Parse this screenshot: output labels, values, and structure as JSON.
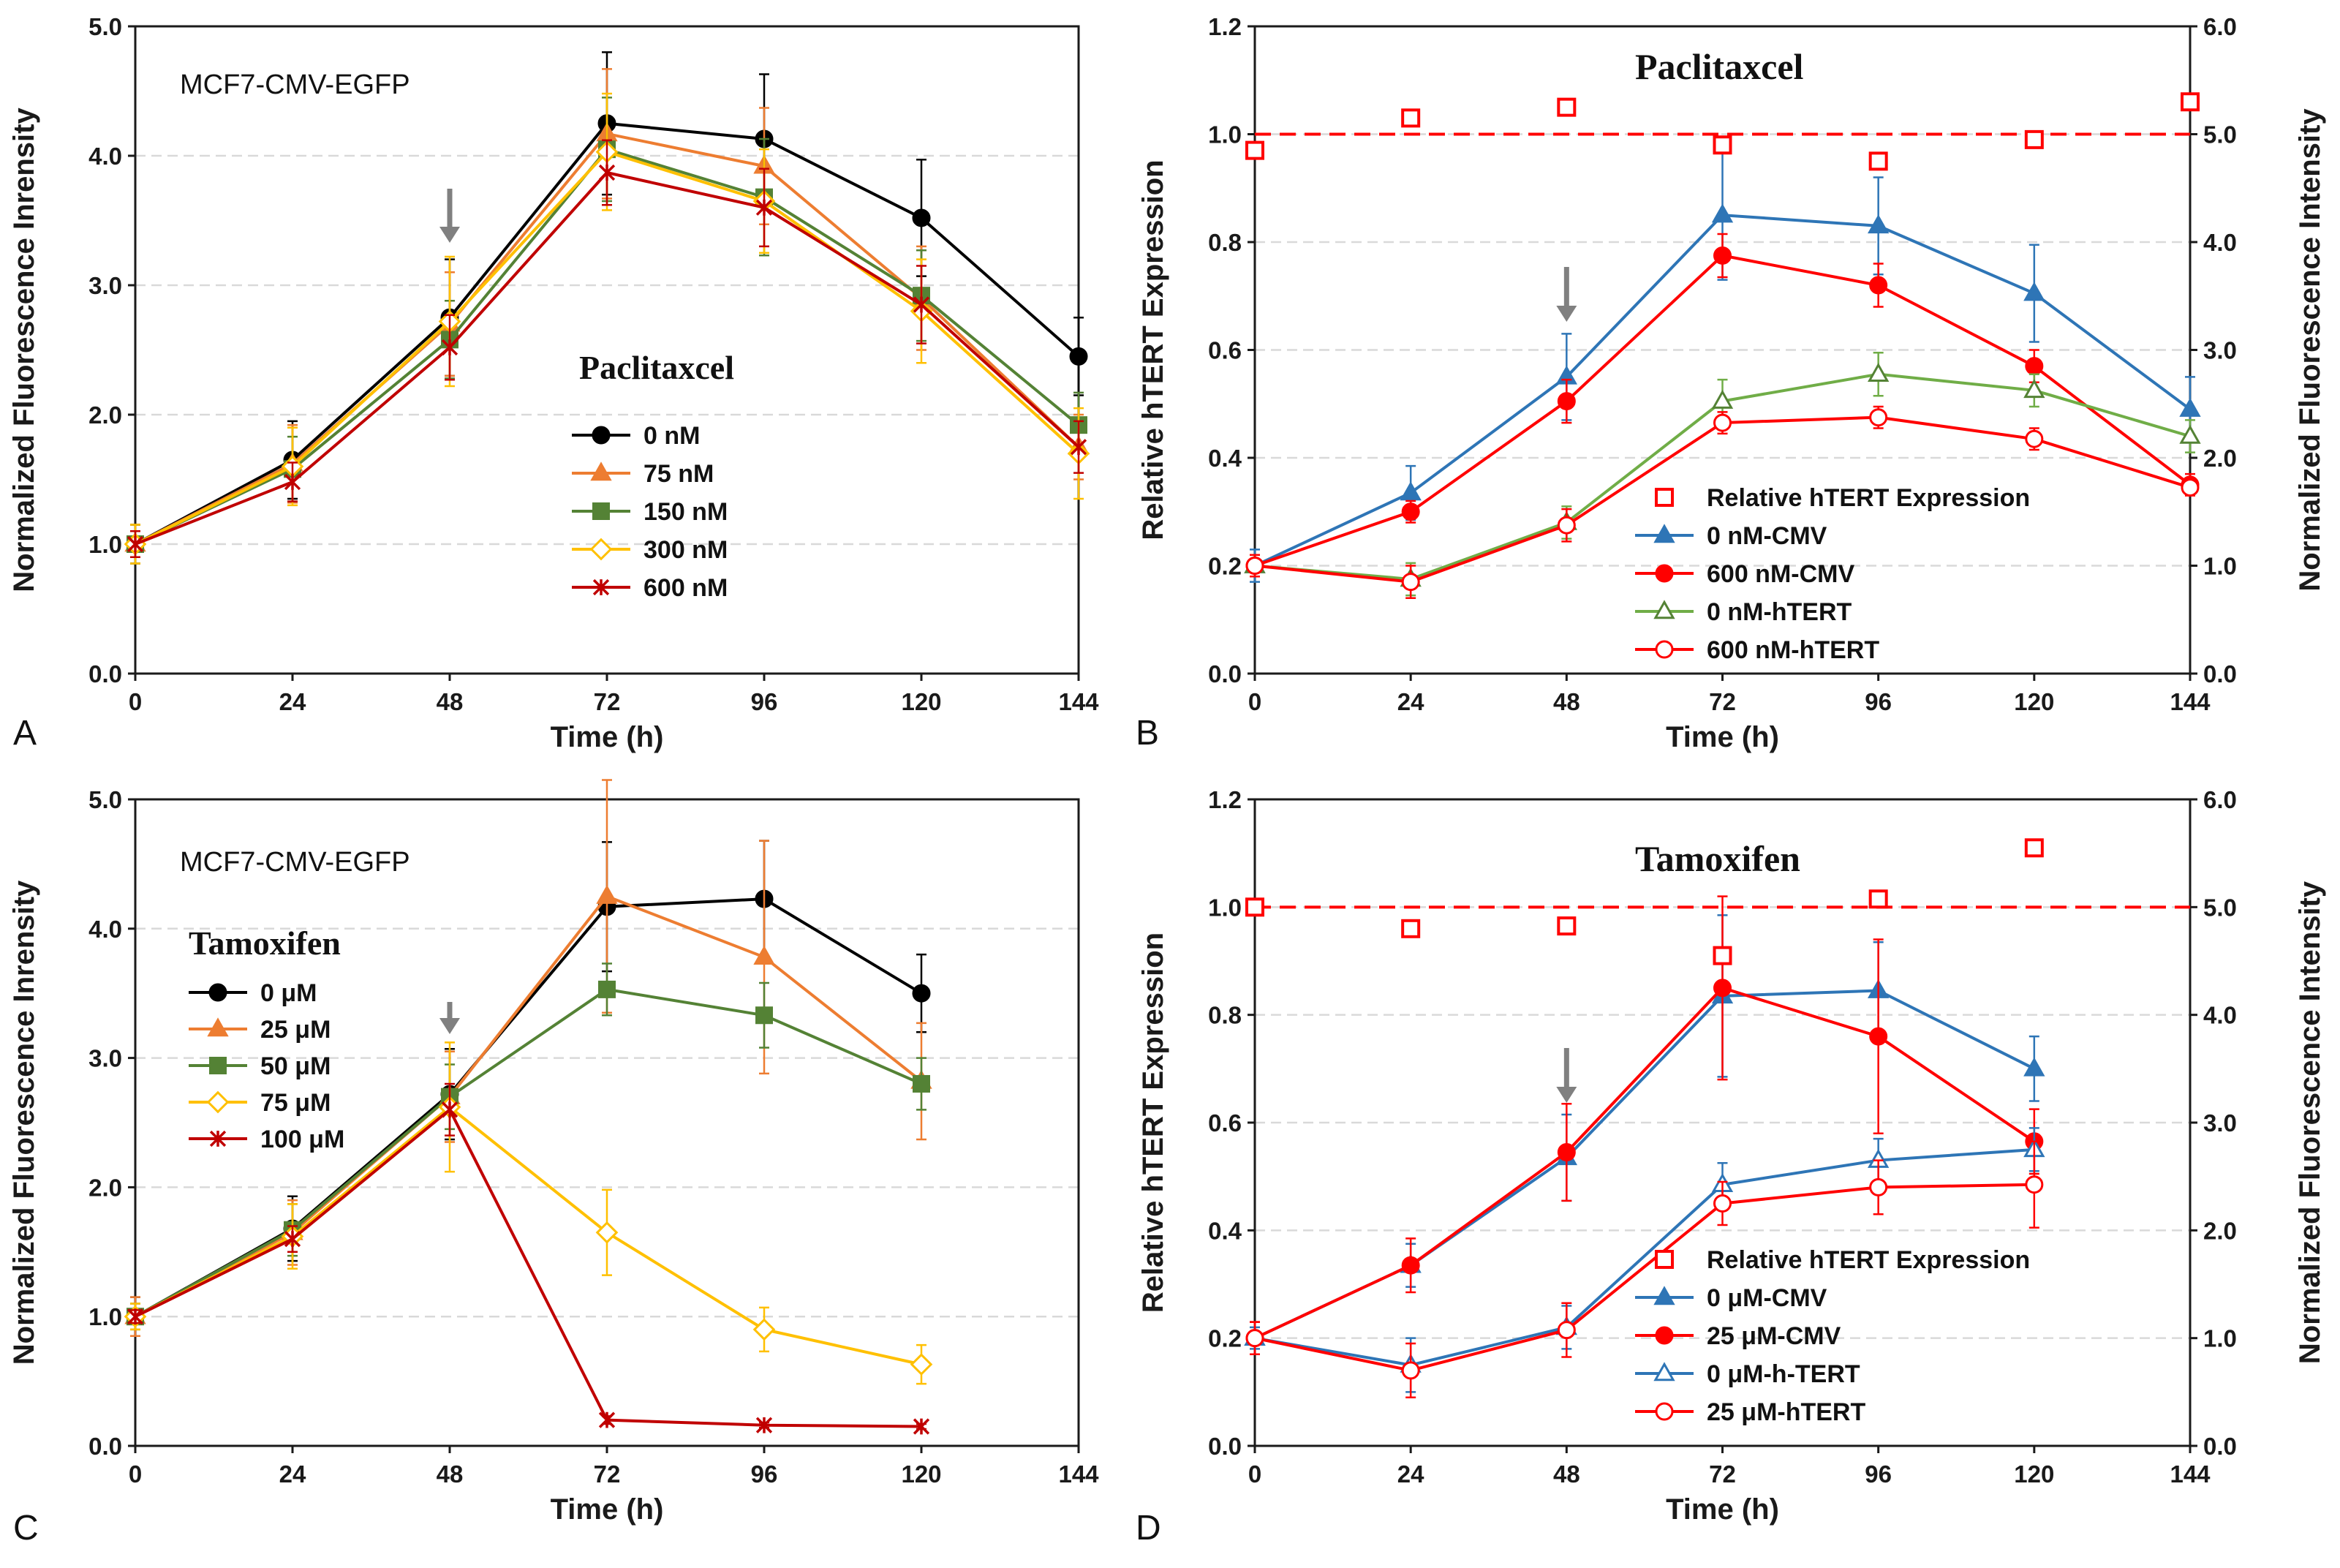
{
  "chart_data": [
    {
      "panel": "A",
      "type": "line",
      "title": "MCF7-CMV-EGFP",
      "xlabel": "Time (h)",
      "ylabel": "Normalized Fluorescence Inrensity",
      "x_ticks": [
        "0",
        "24",
        "48",
        "72",
        "96",
        "120",
        "144"
      ],
      "xlim": [
        0,
        144
      ],
      "y_ticks": [
        "0.0",
        "1.0",
        "2.0",
        "3.0",
        "4.0",
        "5.0"
      ],
      "ylim": [
        0,
        5
      ],
      "legend_title": "Paclitaxcel",
      "arrow_at_x": 48,
      "series": [
        {
          "name": "0 nM",
          "color": "#000000",
          "marker": "circle",
          "x": [
            0,
            24,
            48,
            72,
            96,
            120,
            144
          ],
          "values": [
            1.0,
            1.65,
            2.75,
            4.25,
            4.13,
            3.52,
            2.45
          ],
          "errors": [
            0.15,
            0.3,
            0.45,
            0.55,
            0.5,
            0.45,
            0.3
          ]
        },
        {
          "name": "75 nM",
          "color": "#ED7D31",
          "marker": "triangle",
          "x": [
            0,
            24,
            48,
            72,
            96,
            120,
            144
          ],
          "values": [
            1.0,
            1.62,
            2.7,
            4.17,
            3.92,
            2.9,
            1.75
          ],
          "errors": [
            0.15,
            0.3,
            0.4,
            0.5,
            0.45,
            0.4,
            0.25
          ]
        },
        {
          "name": "150 nM",
          "color": "#548235",
          "marker": "square",
          "x": [
            0,
            24,
            48,
            72,
            96,
            120,
            144
          ],
          "values": [
            1.0,
            1.58,
            2.58,
            4.05,
            3.68,
            2.92,
            1.92
          ],
          "errors": [
            0.15,
            0.25,
            0.3,
            0.4,
            0.45,
            0.35,
            0.25
          ]
        },
        {
          "name": "300 nM",
          "color": "#FFC000",
          "marker": "diamond",
          "x": [
            0,
            24,
            48,
            72,
            96,
            120,
            144
          ],
          "values": [
            1.0,
            1.6,
            2.72,
            4.03,
            3.65,
            2.8,
            1.7
          ],
          "errors": [
            0.15,
            0.3,
            0.5,
            0.45,
            0.4,
            0.4,
            0.35
          ]
        },
        {
          "name": "600 nM",
          "color": "#C00000",
          "marker": "x",
          "x": [
            0,
            24,
            48,
            72,
            96,
            120,
            144
          ],
          "values": [
            1.0,
            1.48,
            2.52,
            3.87,
            3.6,
            2.85,
            1.75
          ],
          "errors": [
            0.1,
            0.15,
            0.25,
            0.25,
            0.3,
            0.3,
            0.2
          ]
        }
      ]
    },
    {
      "panel": "B",
      "type": "line",
      "title": "Paclitaxcel",
      "xlabel": "Time (h)",
      "ylabel": "Relative hTERT Expression",
      "y2label": "Normalized Fluorescence Intensity",
      "x_ticks": [
        "0",
        "24",
        "48",
        "72",
        "96",
        "120",
        "144"
      ],
      "xlim": [
        0,
        144
      ],
      "y_ticks": [
        "0.0",
        "0.2",
        "0.4",
        "0.6",
        "0.8",
        "1.0",
        "1.2"
      ],
      "ylim": [
        0,
        1.2
      ],
      "y2_ticks": [
        "0.0",
        "1.0",
        "2.0",
        "3.0",
        "4.0",
        "5.0",
        "6.0"
      ],
      "y2lim": [
        0,
        6
      ],
      "reference_line": 1.0,
      "arrow_at_x": 48,
      "relative_expression": {
        "name": "Relative hTERT Expression",
        "color": "#FF0000",
        "marker": "open-square",
        "x": [
          0,
          24,
          48,
          72,
          96,
          120,
          144
        ],
        "values": [
          0.97,
          1.03,
          1.05,
          0.98,
          0.95,
          0.99,
          1.06
        ]
      },
      "series": [
        {
          "name": "0 nM-CMV",
          "color": "#2E75B6",
          "marker": "triangle",
          "x": [
            0,
            24,
            48,
            72,
            96,
            120,
            144
          ],
          "values": [
            0.2,
            0.335,
            0.55,
            0.85,
            0.83,
            0.705,
            0.49
          ],
          "errors": [
            0.03,
            0.05,
            0.08,
            0.12,
            0.09,
            0.09,
            0.06
          ]
        },
        {
          "name": "600 nM-CMV",
          "color": "#FF0000",
          "marker": "circle",
          "x": [
            0,
            24,
            48,
            72,
            96,
            120,
            144
          ],
          "values": [
            0.2,
            0.3,
            0.505,
            0.775,
            0.72,
            0.57,
            0.35
          ],
          "errors": [
            0.02,
            0.02,
            0.04,
            0.04,
            0.04,
            0.03,
            0.02
          ]
        },
        {
          "name": "0 nM-hTERT",
          "color": "#548235",
          "line_color": "#70AD47",
          "marker": "open-triangle",
          "x": [
            0,
            24,
            48,
            72,
            96,
            120,
            144
          ],
          "values": [
            0.2,
            0.175,
            0.28,
            0.505,
            0.555,
            0.525,
            0.44
          ],
          "errors": [
            0.02,
            0.03,
            0.03,
            0.04,
            0.04,
            0.03,
            0.03
          ]
        },
        {
          "name": "600 nM-hTERT",
          "color": "#FF0000",
          "marker": "open-circle",
          "x": [
            0,
            24,
            48,
            72,
            96,
            120,
            144
          ],
          "values": [
            0.2,
            0.17,
            0.275,
            0.465,
            0.475,
            0.435,
            0.345
          ],
          "errors": [
            0.02,
            0.03,
            0.03,
            0.02,
            0.02,
            0.02,
            0.01
          ]
        }
      ]
    },
    {
      "panel": "C",
      "type": "line",
      "title": "MCF7-CMV-EGFP",
      "xlabel": "Time (h)",
      "ylabel": "Normalized Fluorescence Inrensity",
      "x_ticks": [
        "0",
        "24",
        "48",
        "72",
        "96",
        "120",
        "144"
      ],
      "xlim": [
        0,
        144
      ],
      "y_ticks": [
        "0.0",
        "1.0",
        "2.0",
        "3.0",
        "4.0",
        "5.0"
      ],
      "ylim": [
        0,
        5
      ],
      "legend_title": "Tamoxifen",
      "arrow_at_x": 48,
      "series": [
        {
          "name": "0 μM",
          "color": "#000000",
          "marker": "circle",
          "x": [
            0,
            24,
            48,
            72,
            96,
            120
          ],
          "values": [
            1.0,
            1.68,
            2.72,
            4.17,
            4.23,
            3.5
          ],
          "errors": [
            0.15,
            0.25,
            0.35,
            0.5,
            0.45,
            0.3
          ]
        },
        {
          "name": "25 μM",
          "color": "#ED7D31",
          "marker": "triangle",
          "x": [
            0,
            24,
            48,
            72,
            96,
            120
          ],
          "values": [
            1.0,
            1.65,
            2.7,
            4.25,
            3.78,
            2.82
          ],
          "errors": [
            0.15,
            0.25,
            0.35,
            0.9,
            0.9,
            0.45
          ]
        },
        {
          "name": "50 μM",
          "color": "#548235",
          "marker": "square",
          "x": [
            0,
            24,
            48,
            72,
            96,
            120
          ],
          "values": [
            1.0,
            1.67,
            2.7,
            3.53,
            3.33,
            2.8
          ],
          "errors": [
            0.1,
            0.2,
            0.25,
            0.2,
            0.25,
            0.2
          ]
        },
        {
          "name": "75 μM",
          "color": "#FFC000",
          "marker": "diamond",
          "x": [
            0,
            24,
            48,
            72,
            96,
            120
          ],
          "values": [
            1.0,
            1.62,
            2.62,
            1.65,
            0.9,
            0.63
          ],
          "errors": [
            0.1,
            0.25,
            0.5,
            0.33,
            0.17,
            0.15
          ]
        },
        {
          "name": "100 μM",
          "color": "#C00000",
          "marker": "x",
          "x": [
            0,
            24,
            48,
            72,
            96,
            120
          ],
          "values": [
            1.0,
            1.6,
            2.6,
            0.2,
            0.16,
            0.15
          ],
          "errors": [
            0.05,
            0.1,
            0.2,
            0.03,
            0.02,
            0.02
          ]
        }
      ]
    },
    {
      "panel": "D",
      "type": "line",
      "title": "Tamoxifen",
      "xlabel": "Time (h)",
      "ylabel": "Relative hTERT Expression",
      "y2label": "Normalized Fluorescence Intensity",
      "x_ticks": [
        "0",
        "24",
        "48",
        "72",
        "96",
        "120",
        "144"
      ],
      "xlim": [
        0,
        144
      ],
      "y_ticks": [
        "0.0",
        "0.2",
        "0.4",
        "0.6",
        "0.8",
        "1.0",
        "1.2"
      ],
      "ylim": [
        0,
        1.2
      ],
      "y2_ticks": [
        "0.0",
        "1.0",
        "2.0",
        "3.0",
        "4.0",
        "5.0",
        "6.0"
      ],
      "y2lim": [
        0,
        6
      ],
      "reference_line": 1.0,
      "arrow_at_x": 48,
      "relative_expression": {
        "name": "Relative hTERT Expression",
        "color": "#FF0000",
        "marker": "open-square",
        "x": [
          0,
          24,
          48,
          72,
          96,
          120
        ],
        "values": [
          1.0,
          0.96,
          0.965,
          0.91,
          1.015,
          1.11
        ]
      },
      "series": [
        {
          "name": "0 μM-CMV",
          "color": "#2E75B6",
          "marker": "triangle",
          "x": [
            0,
            24,
            48,
            72,
            96,
            120
          ],
          "values": [
            0.2,
            0.335,
            0.535,
            0.835,
            0.845,
            0.7
          ],
          "errors": [
            0.03,
            0.04,
            0.08,
            0.15,
            0.09,
            0.06
          ]
        },
        {
          "name": "25 μM-CMV",
          "color": "#FF0000",
          "marker": "circle",
          "x": [
            0,
            24,
            48,
            72,
            96,
            120
          ],
          "values": [
            0.2,
            0.335,
            0.545,
            0.85,
            0.76,
            0.565
          ],
          "errors": [
            0.03,
            0.05,
            0.09,
            0.17,
            0.18,
            0.06
          ]
        },
        {
          "name": "0 μM-h-TERT",
          "color": "#2E75B6",
          "marker": "open-triangle",
          "x": [
            0,
            24,
            48,
            72,
            96,
            120
          ],
          "values": [
            0.2,
            0.15,
            0.22,
            0.485,
            0.53,
            0.55
          ],
          "errors": [
            0.02,
            0.05,
            0.04,
            0.04,
            0.04,
            0.04
          ]
        },
        {
          "name": "25 μM-hTERT",
          "color": "#FF0000",
          "marker": "open-circle",
          "x": [
            0,
            24,
            48,
            72,
            96,
            120
          ],
          "values": [
            0.2,
            0.14,
            0.215,
            0.45,
            0.48,
            0.485
          ],
          "errors": [
            0.03,
            0.05,
            0.05,
            0.04,
            0.05,
            0.08
          ]
        }
      ]
    }
  ],
  "panel_labels": [
    "A",
    "B",
    "C",
    "D"
  ]
}
